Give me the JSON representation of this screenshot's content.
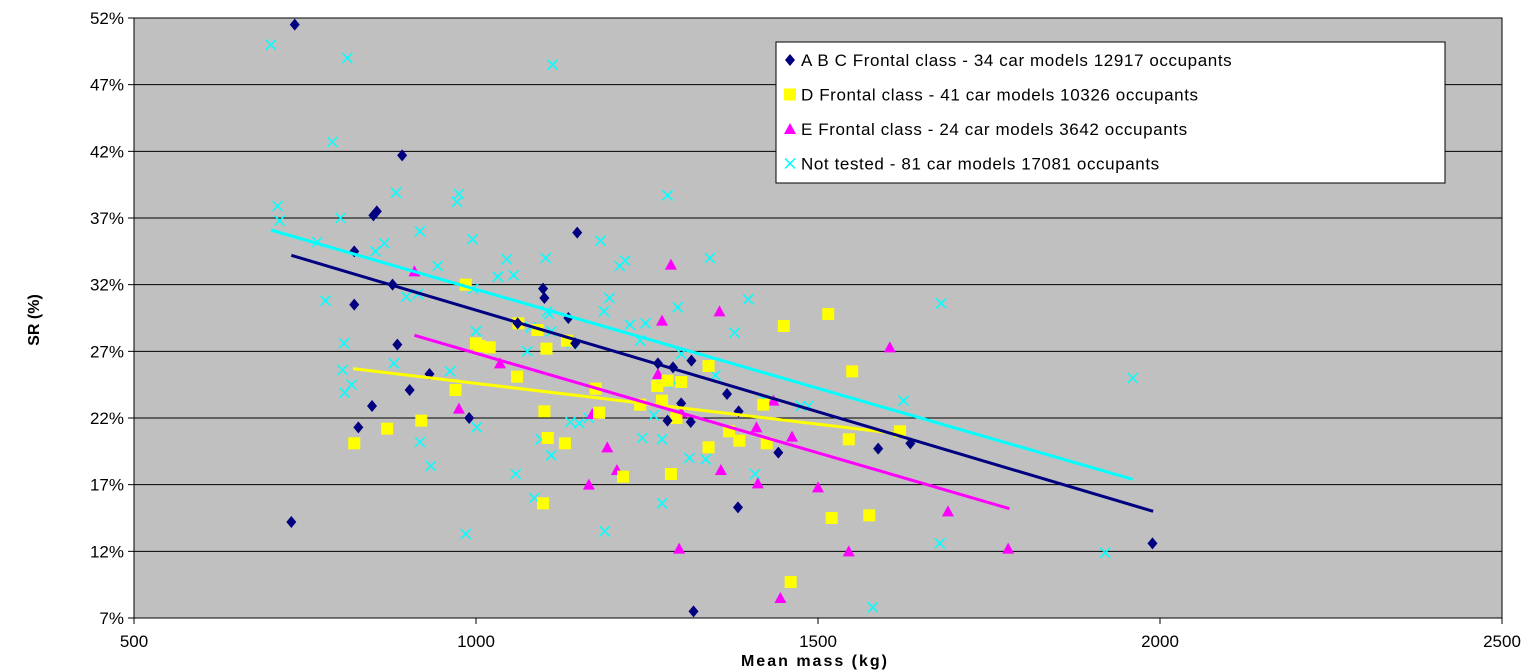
{
  "chart_data": {
    "type": "scatter",
    "title": "",
    "xlabel": "Mean mass (kg)",
    "ylabel": "SR (%)",
    "xlim": [
      500,
      2500
    ],
    "ylim": [
      7,
      52
    ],
    "xticks": [
      500,
      1000,
      1500,
      2000,
      2500
    ],
    "yticks": [
      7,
      12,
      17,
      22,
      27,
      32,
      37,
      42,
      47,
      52
    ],
    "ytick_suffix": "%",
    "grid": "horizontal",
    "legend_position": "top-right",
    "colors": {
      "plot_background": "#c0c0c0",
      "abc": "#000080",
      "d": "#ffff00",
      "e": "#ff00ff",
      "nt": "#00ffff"
    },
    "series": [
      {
        "name": "A B C Frontal class - 34 car models 12917 occupants",
        "marker": "diamond",
        "color": "#000080",
        "points": [
          [
            735,
            51.5
          ],
          [
            730,
            14.2
          ],
          [
            822,
            34.5
          ],
          [
            822,
            30.5
          ],
          [
            828,
            21.3
          ],
          [
            848,
            22.9
          ],
          [
            850,
            37.2
          ],
          [
            855,
            37.5
          ],
          [
            878,
            32
          ],
          [
            885,
            27.5
          ],
          [
            892,
            41.7
          ],
          [
            903,
            24.1
          ],
          [
            932,
            25.3
          ],
          [
            990,
            22
          ],
          [
            1061,
            29.1
          ],
          [
            1098,
            31.7
          ],
          [
            1100,
            31
          ],
          [
            1135,
            29.5
          ],
          [
            1145,
            27.6
          ],
          [
            1148,
            35.9
          ],
          [
            1266,
            26.1
          ],
          [
            1280,
            21.8
          ],
          [
            1288,
            25.8
          ],
          [
            1300,
            23.1
          ],
          [
            1314,
            21.7
          ],
          [
            1315,
            26.3
          ],
          [
            1318,
            7.5
          ],
          [
            1367,
            23.8
          ],
          [
            1383,
            15.3
          ],
          [
            1384,
            22.5
          ],
          [
            1442,
            19.4
          ],
          [
            1588,
            19.7
          ],
          [
            1635,
            20.1
          ],
          [
            1989,
            12.6
          ]
        ],
        "trend": [
          [
            730,
            34.2
          ],
          [
            1990,
            15
          ]
        ]
      },
      {
        "name": "D Frontal class - 41 car models 10326 occupants",
        "marker": "square",
        "color": "#ffff00",
        "points": [
          [
            822,
            20.1
          ],
          [
            870,
            21.2
          ],
          [
            920,
            21.8
          ],
          [
            970,
            24.1
          ],
          [
            985,
            32
          ],
          [
            1000,
            27.6
          ],
          [
            1020,
            27.3
          ],
          [
            1060,
            25.1
          ],
          [
            1062,
            29.1
          ],
          [
            1090,
            28.6
          ],
          [
            1098,
            15.6
          ],
          [
            1100,
            22.5
          ],
          [
            1103,
            27.2
          ],
          [
            1105,
            20.5
          ],
          [
            1130,
            20.1
          ],
          [
            1133,
            27.8
          ],
          [
            1175,
            24.2
          ],
          [
            1215,
            17.6
          ],
          [
            1240,
            23
          ],
          [
            1265,
            24.4
          ],
          [
            1272,
            23.3
          ],
          [
            1285,
            17.8
          ],
          [
            1293,
            22
          ],
          [
            1300,
            24.7
          ],
          [
            1340,
            19.8
          ],
          [
            1340,
            25.9
          ],
          [
            1370,
            21
          ],
          [
            1385,
            20.3
          ],
          [
            1420,
            23
          ],
          [
            1425,
            20.1
          ],
          [
            1450,
            28.9
          ],
          [
            1460,
            9.7
          ],
          [
            1515,
            29.8
          ],
          [
            1520,
            14.5
          ],
          [
            1545,
            20.4
          ],
          [
            1550,
            25.5
          ],
          [
            1575,
            14.7
          ],
          [
            1620,
            21
          ],
          [
            1280,
            24.8
          ],
          [
            1180,
            22.4
          ],
          [
            1005,
            27.4
          ]
        ],
        "trend": [
          [
            820,
            25.7
          ],
          [
            1620,
            20.8
          ]
        ]
      },
      {
        "name": "E Frontal class - 24 car models 3642 occupants",
        "marker": "triangle",
        "color": "#ff00ff",
        "points": [
          [
            910,
            33
          ],
          [
            975,
            22.7
          ],
          [
            1035,
            26.1
          ],
          [
            1165,
            17
          ],
          [
            1170,
            22.3
          ],
          [
            1192,
            19.8
          ],
          [
            1206,
            18.1
          ],
          [
            1272,
            29.3
          ],
          [
            1285,
            33.5
          ],
          [
            1297,
            12.2
          ],
          [
            1356,
            30
          ],
          [
            1358,
            18.1
          ],
          [
            1410,
            21.3
          ],
          [
            1412,
            17.1
          ],
          [
            1435,
            23.3
          ],
          [
            1445,
            8.5
          ],
          [
            1462,
            20.6
          ],
          [
            1500,
            16.8
          ],
          [
            1545,
            12
          ],
          [
            1605,
            27.3
          ],
          [
            1690,
            15
          ],
          [
            1778,
            12.2
          ],
          [
            1266,
            25.3
          ],
          [
            1300,
            22.4
          ]
        ],
        "trend": [
          [
            910,
            28.2
          ],
          [
            1780,
            15.2
          ]
        ]
      },
      {
        "name": "Not tested - 81 car models 17081 occupants",
        "marker": "x",
        "color": "#00ffff",
        "points": [
          [
            700,
            50
          ],
          [
            710,
            37.9
          ],
          [
            713,
            36.8
          ],
          [
            768,
            35.2
          ],
          [
            780,
            30.8
          ],
          [
            790,
            42.7
          ],
          [
            802,
            37
          ],
          [
            805,
            25.6
          ],
          [
            807,
            27.6
          ],
          [
            808,
            23.9
          ],
          [
            812,
            49
          ],
          [
            818,
            24.5
          ],
          [
            853,
            34.5
          ],
          [
            866,
            35.1
          ],
          [
            880,
            26.1
          ],
          [
            883,
            38.9
          ],
          [
            898,
            31.1
          ],
          [
            915,
            31.3
          ],
          [
            918,
            36
          ],
          [
            918,
            20.2
          ],
          [
            934,
            18.4
          ],
          [
            944,
            33.4
          ],
          [
            962,
            25.5
          ],
          [
            972,
            38.2
          ],
          [
            975,
            38.8
          ],
          [
            985,
            13.3
          ],
          [
            995,
            35.4
          ],
          [
            996,
            31.7
          ],
          [
            1001,
            21.3
          ],
          [
            1032,
            32.6
          ],
          [
            1045,
            33.9
          ],
          [
            1055,
            32.7
          ],
          [
            1058,
            17.8
          ],
          [
            1075,
            27
          ],
          [
            1085,
            16
          ],
          [
            1095,
            20.4
          ],
          [
            1110,
            28.5
          ],
          [
            1102,
            34
          ],
          [
            1104,
            30
          ],
          [
            1107,
            29.8
          ],
          [
            1110,
            19.2
          ],
          [
            1112,
            48.5
          ],
          [
            1138,
            21.7
          ],
          [
            1151,
            21.6
          ],
          [
            1165,
            22
          ],
          [
            1182,
            35.3
          ],
          [
            1187,
            30
          ],
          [
            1188,
            13.5
          ],
          [
            1195,
            31
          ],
          [
            1210,
            33.4
          ],
          [
            1218,
            33.8
          ],
          [
            1240,
            27.8
          ],
          [
            1243,
            20.5
          ],
          [
            1248,
            29.1
          ],
          [
            1272,
            20.4
          ],
          [
            1272,
            15.6
          ],
          [
            1280,
            38.7
          ],
          [
            1290,
            24.6
          ],
          [
            1295,
            30.3
          ],
          [
            1312,
            19
          ],
          [
            1336,
            18.9
          ],
          [
            1342,
            34
          ],
          [
            1378,
            28.4
          ],
          [
            1398,
            30.9
          ],
          [
            1408,
            17.8
          ],
          [
            1420,
            23.4
          ],
          [
            1475,
            22.9
          ],
          [
            1486,
            22.9
          ],
          [
            1580,
            7.8
          ],
          [
            1625,
            23.3
          ],
          [
            1678,
            12.6
          ],
          [
            1680,
            30.6
          ],
          [
            1920,
            11.9
          ],
          [
            1960,
            25
          ],
          [
            1225,
            29
          ],
          [
            1140,
            27.6
          ],
          [
            1080,
            28.8
          ],
          [
            1000,
            28.5
          ],
          [
            1300,
            26.8
          ],
          [
            1350,
            25.2
          ],
          [
            1260,
            22.2
          ]
        ],
        "trend": [
          [
            700,
            36.1
          ],
          [
            1960,
            17.4
          ]
        ]
      }
    ]
  }
}
